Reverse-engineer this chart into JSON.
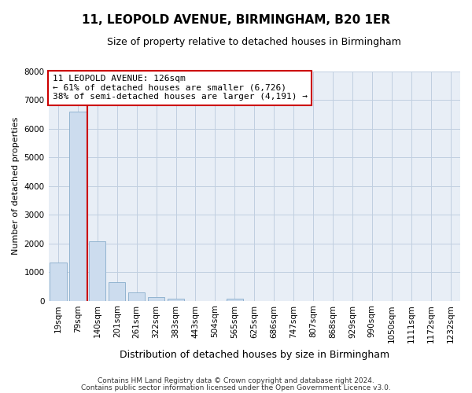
{
  "title": "11, LEOPOLD AVENUE, BIRMINGHAM, B20 1ER",
  "subtitle": "Size of property relative to detached houses in Birmingham",
  "xlabel": "Distribution of detached houses by size in Birmingham",
  "ylabel": "Number of detached properties",
  "bin_labels": [
    "19sqm",
    "79sqm",
    "140sqm",
    "201sqm",
    "261sqm",
    "322sqm",
    "383sqm",
    "443sqm",
    "504sqm",
    "565sqm",
    "625sqm",
    "686sqm",
    "747sqm",
    "807sqm",
    "868sqm",
    "929sqm",
    "990sqm",
    "1050sqm",
    "1111sqm",
    "1172sqm",
    "1232sqm"
  ],
  "bin_values": [
    1320,
    6600,
    2060,
    640,
    290,
    130,
    70,
    0,
    0,
    70,
    0,
    0,
    0,
    0,
    0,
    0,
    0,
    0,
    0,
    0,
    0
  ],
  "bar_color": "#ccdcee",
  "bar_edgecolor": "#92b4d0",
  "vline_x_idx": 2,
  "vline_color": "#cc0000",
  "ylim": [
    0,
    8000
  ],
  "yticks": [
    0,
    1000,
    2000,
    3000,
    4000,
    5000,
    6000,
    7000,
    8000
  ],
  "annotation_title": "11 LEOPOLD AVENUE: 126sqm",
  "annotation_line1": "← 61% of detached houses are smaller (6,726)",
  "annotation_line2": "38% of semi-detached houses are larger (4,191) →",
  "annotation_box_facecolor": "#ffffff",
  "annotation_box_edgecolor": "#cc0000",
  "footer_line1": "Contains HM Land Registry data © Crown copyright and database right 2024.",
  "footer_line2": "Contains public sector information licensed under the Open Government Licence v3.0.",
  "plot_bg_color": "#e8eef6",
  "fig_bg_color": "#ffffff",
  "grid_color": "#c0cfe0",
  "title_fontsize": 11,
  "subtitle_fontsize": 9,
  "xlabel_fontsize": 9,
  "ylabel_fontsize": 8,
  "tick_fontsize": 7.5,
  "annotation_fontsize": 8,
  "footer_fontsize": 6.5
}
